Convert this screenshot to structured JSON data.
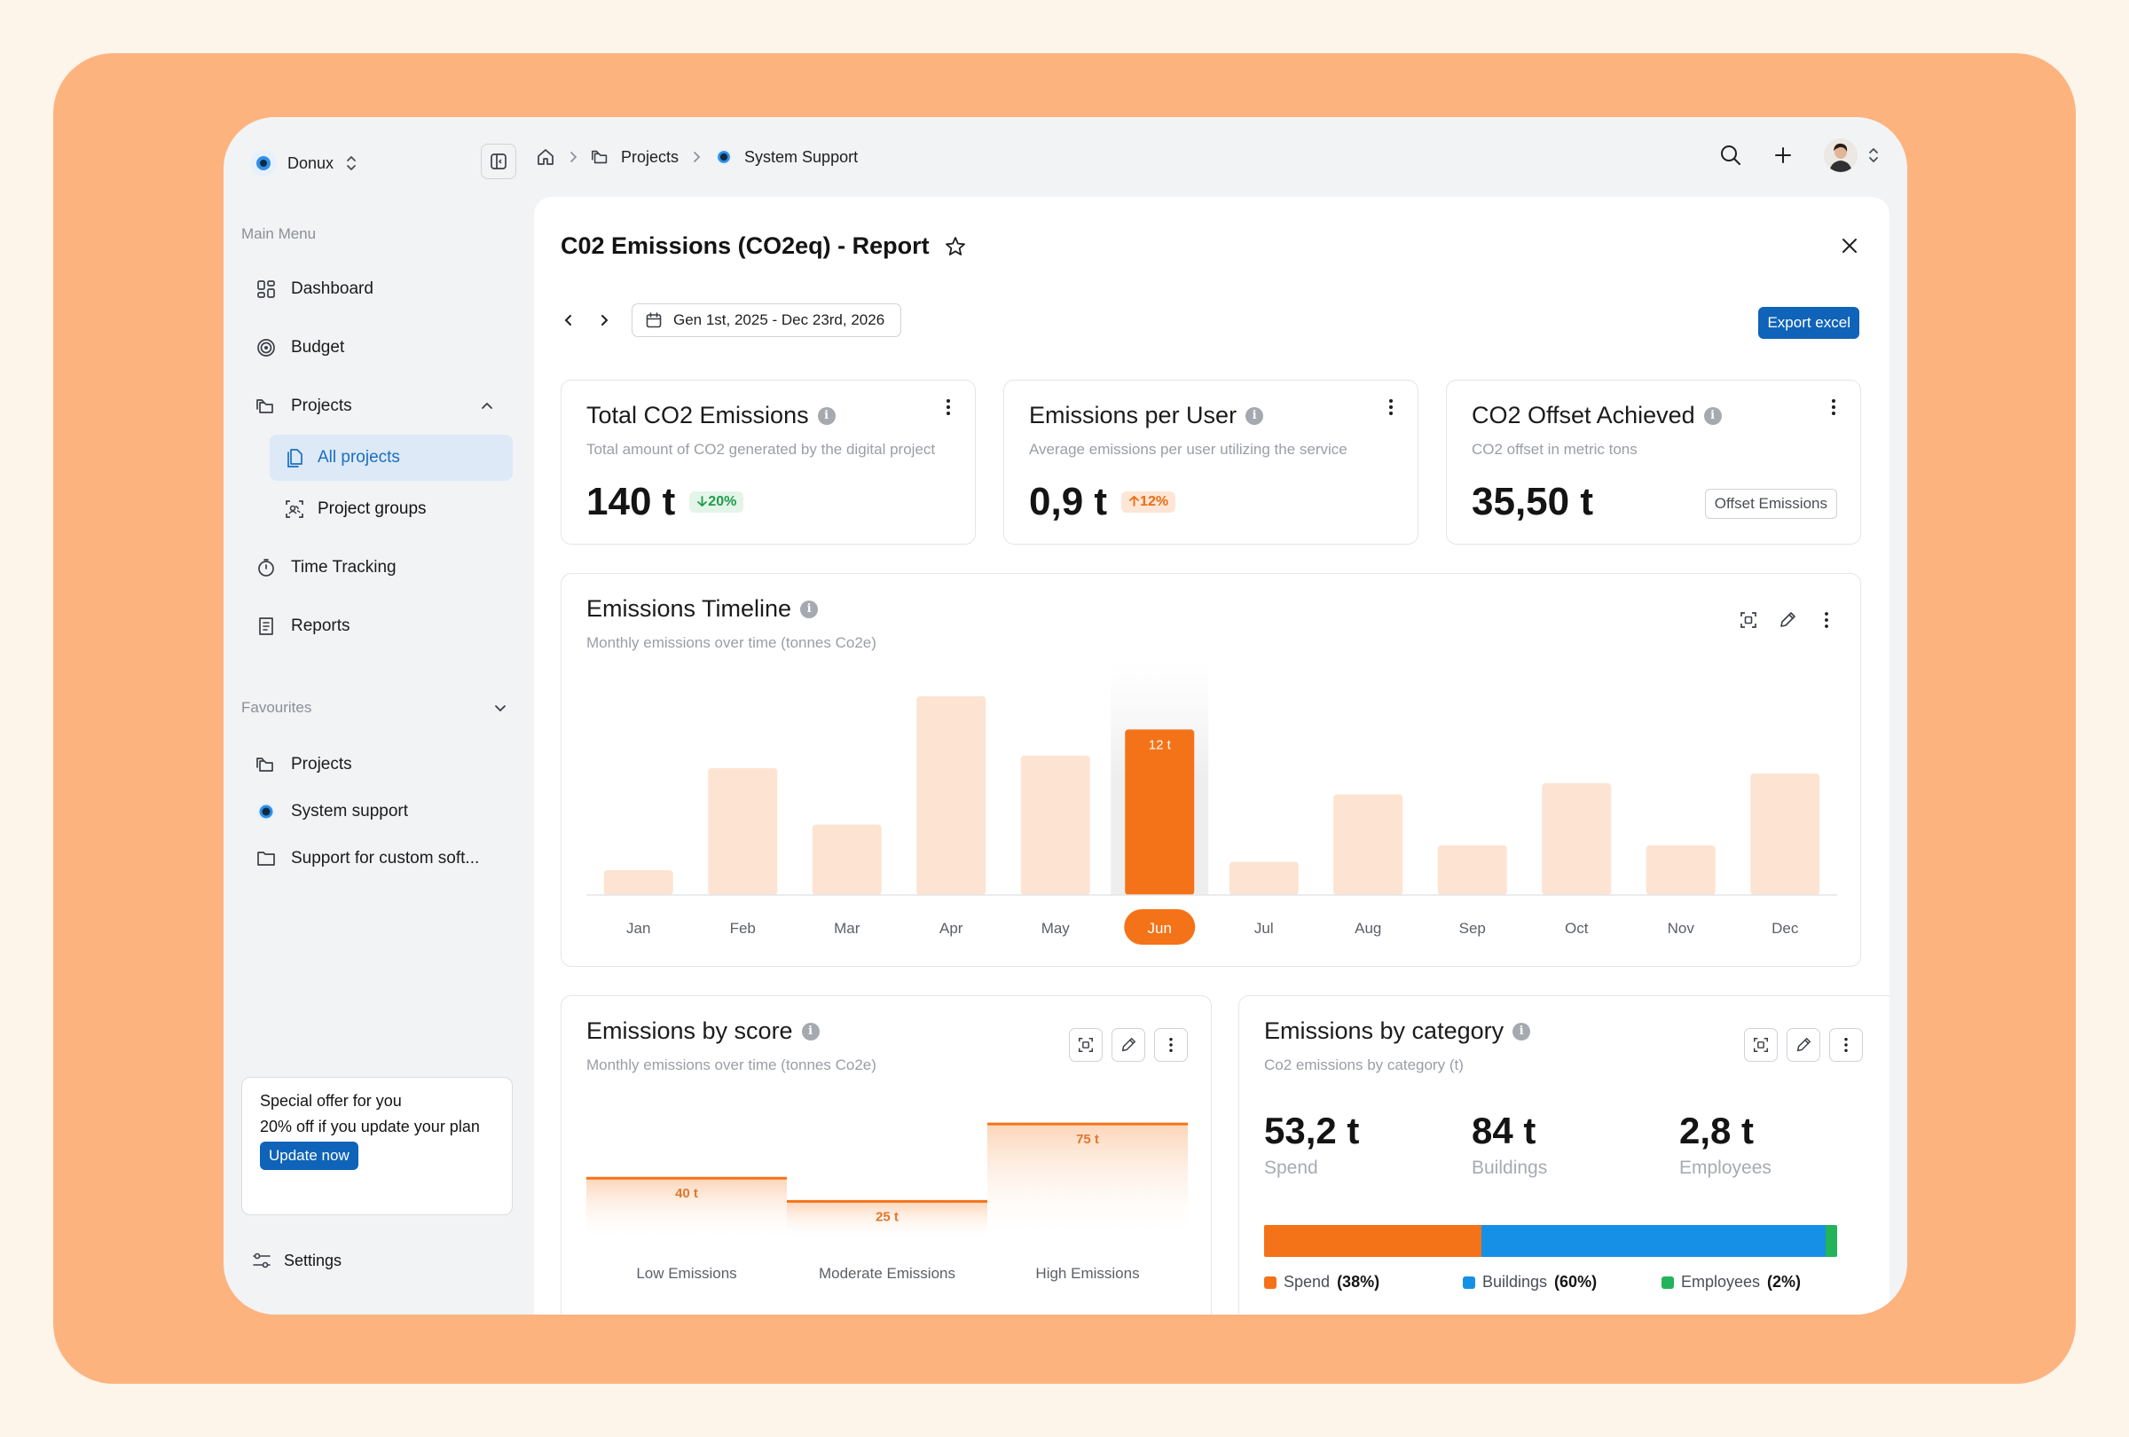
{
  "workspace": {
    "name": "Donux"
  },
  "sidebar": {
    "main_menu_title": "Main Menu",
    "items": [
      {
        "label": "Dashboard",
        "icon": "dashboard-icon"
      },
      {
        "label": "Budget",
        "icon": "target-icon"
      },
      {
        "label": "Projects",
        "icon": "folder-icon"
      },
      {
        "label": "All projects",
        "icon": "document-icon"
      },
      {
        "label": "Project groups",
        "icon": "group-icon"
      },
      {
        "label": "Time Tracking",
        "icon": "stopwatch-icon"
      },
      {
        "label": "Reports",
        "icon": "report-icon"
      }
    ],
    "favourites_title": "Favourites",
    "favourites": [
      {
        "label": "Projects"
      },
      {
        "label": "System support"
      },
      {
        "label": "Support for custom soft..."
      }
    ],
    "promo": {
      "title": "Special offer for you",
      "text": "20% off if you update your plan",
      "button": "Update now"
    },
    "settings_label": "Settings"
  },
  "breadcrumb": {
    "projects": "Projects",
    "current": "System Support"
  },
  "page": {
    "title": "C02 Emissions (CO2eq) - Report",
    "date_range": "Gen 1st, 2025 - Dec 23rd, 2026",
    "export_label": "Export excel"
  },
  "kpis": [
    {
      "title": "Total CO2 Emissions",
      "subtitle": "Total amount of CO2 generated by the digital project",
      "value": "140 t",
      "badge": "20%",
      "badge_dir": "down"
    },
    {
      "title": "Emissions per User",
      "subtitle": "Average emissions per user utilizing the service",
      "value": "0,9 t",
      "badge": "12%",
      "badge_dir": "up"
    },
    {
      "title": "CO2 Offset Achieved",
      "subtitle": "CO2 offset in metric tons",
      "value": "35,50 t",
      "button": "Offset Emissions"
    }
  ],
  "timeline": {
    "title": "Emissions Timeline",
    "subtitle": "Monthly emissions over time (tonnes Co2e)"
  },
  "by_score": {
    "title": "Emissions by score",
    "subtitle": "Monthly emissions over time (tonnes Co2e)"
  },
  "by_category": {
    "title": "Emissions by category",
    "subtitle": "Co2 emissions by category (t)",
    "items": [
      {
        "value": "53,2 t",
        "label": "Spend",
        "legend": "Spend",
        "pct": "(38%)",
        "share": 0.38,
        "color": "#f47318"
      },
      {
        "value": "84 t",
        "label": "Buildings",
        "legend": "Buildings",
        "pct": "(60%)",
        "share": 0.6,
        "color": "#1690e6"
      },
      {
        "value": "2,8 t",
        "label": "Employees",
        "legend": "Employees",
        "pct": "(2%)",
        "share": 0.02,
        "color": "#23b35a"
      }
    ]
  },
  "colors": {
    "accent": "#f47318",
    "accent_light": "#fde3d2",
    "primary": "#0f63b8"
  },
  "chart_data": [
    {
      "type": "bar",
      "categories": [
        "Jan",
        "Feb",
        "Mar",
        "Apr",
        "May",
        "Jun",
        "Jul",
        "Aug",
        "Sep",
        "Oct",
        "Nov",
        "Dec"
      ],
      "values": [
        1.8,
        9.2,
        5.1,
        14.4,
        10.1,
        12,
        2.4,
        7.3,
        3.6,
        8.1,
        3.6,
        8.8
      ],
      "highlight": {
        "category": "Jun",
        "label": "12 t"
      },
      "ylim": [
        0,
        18
      ]
    },
    {
      "type": "bar",
      "categories": [
        "Low Emissions",
        "Moderate Emissions",
        "High Emissions"
      ],
      "values": [
        40,
        25,
        75
      ],
      "labels": [
        "40 t",
        "25 t",
        "75 t"
      ]
    }
  ]
}
